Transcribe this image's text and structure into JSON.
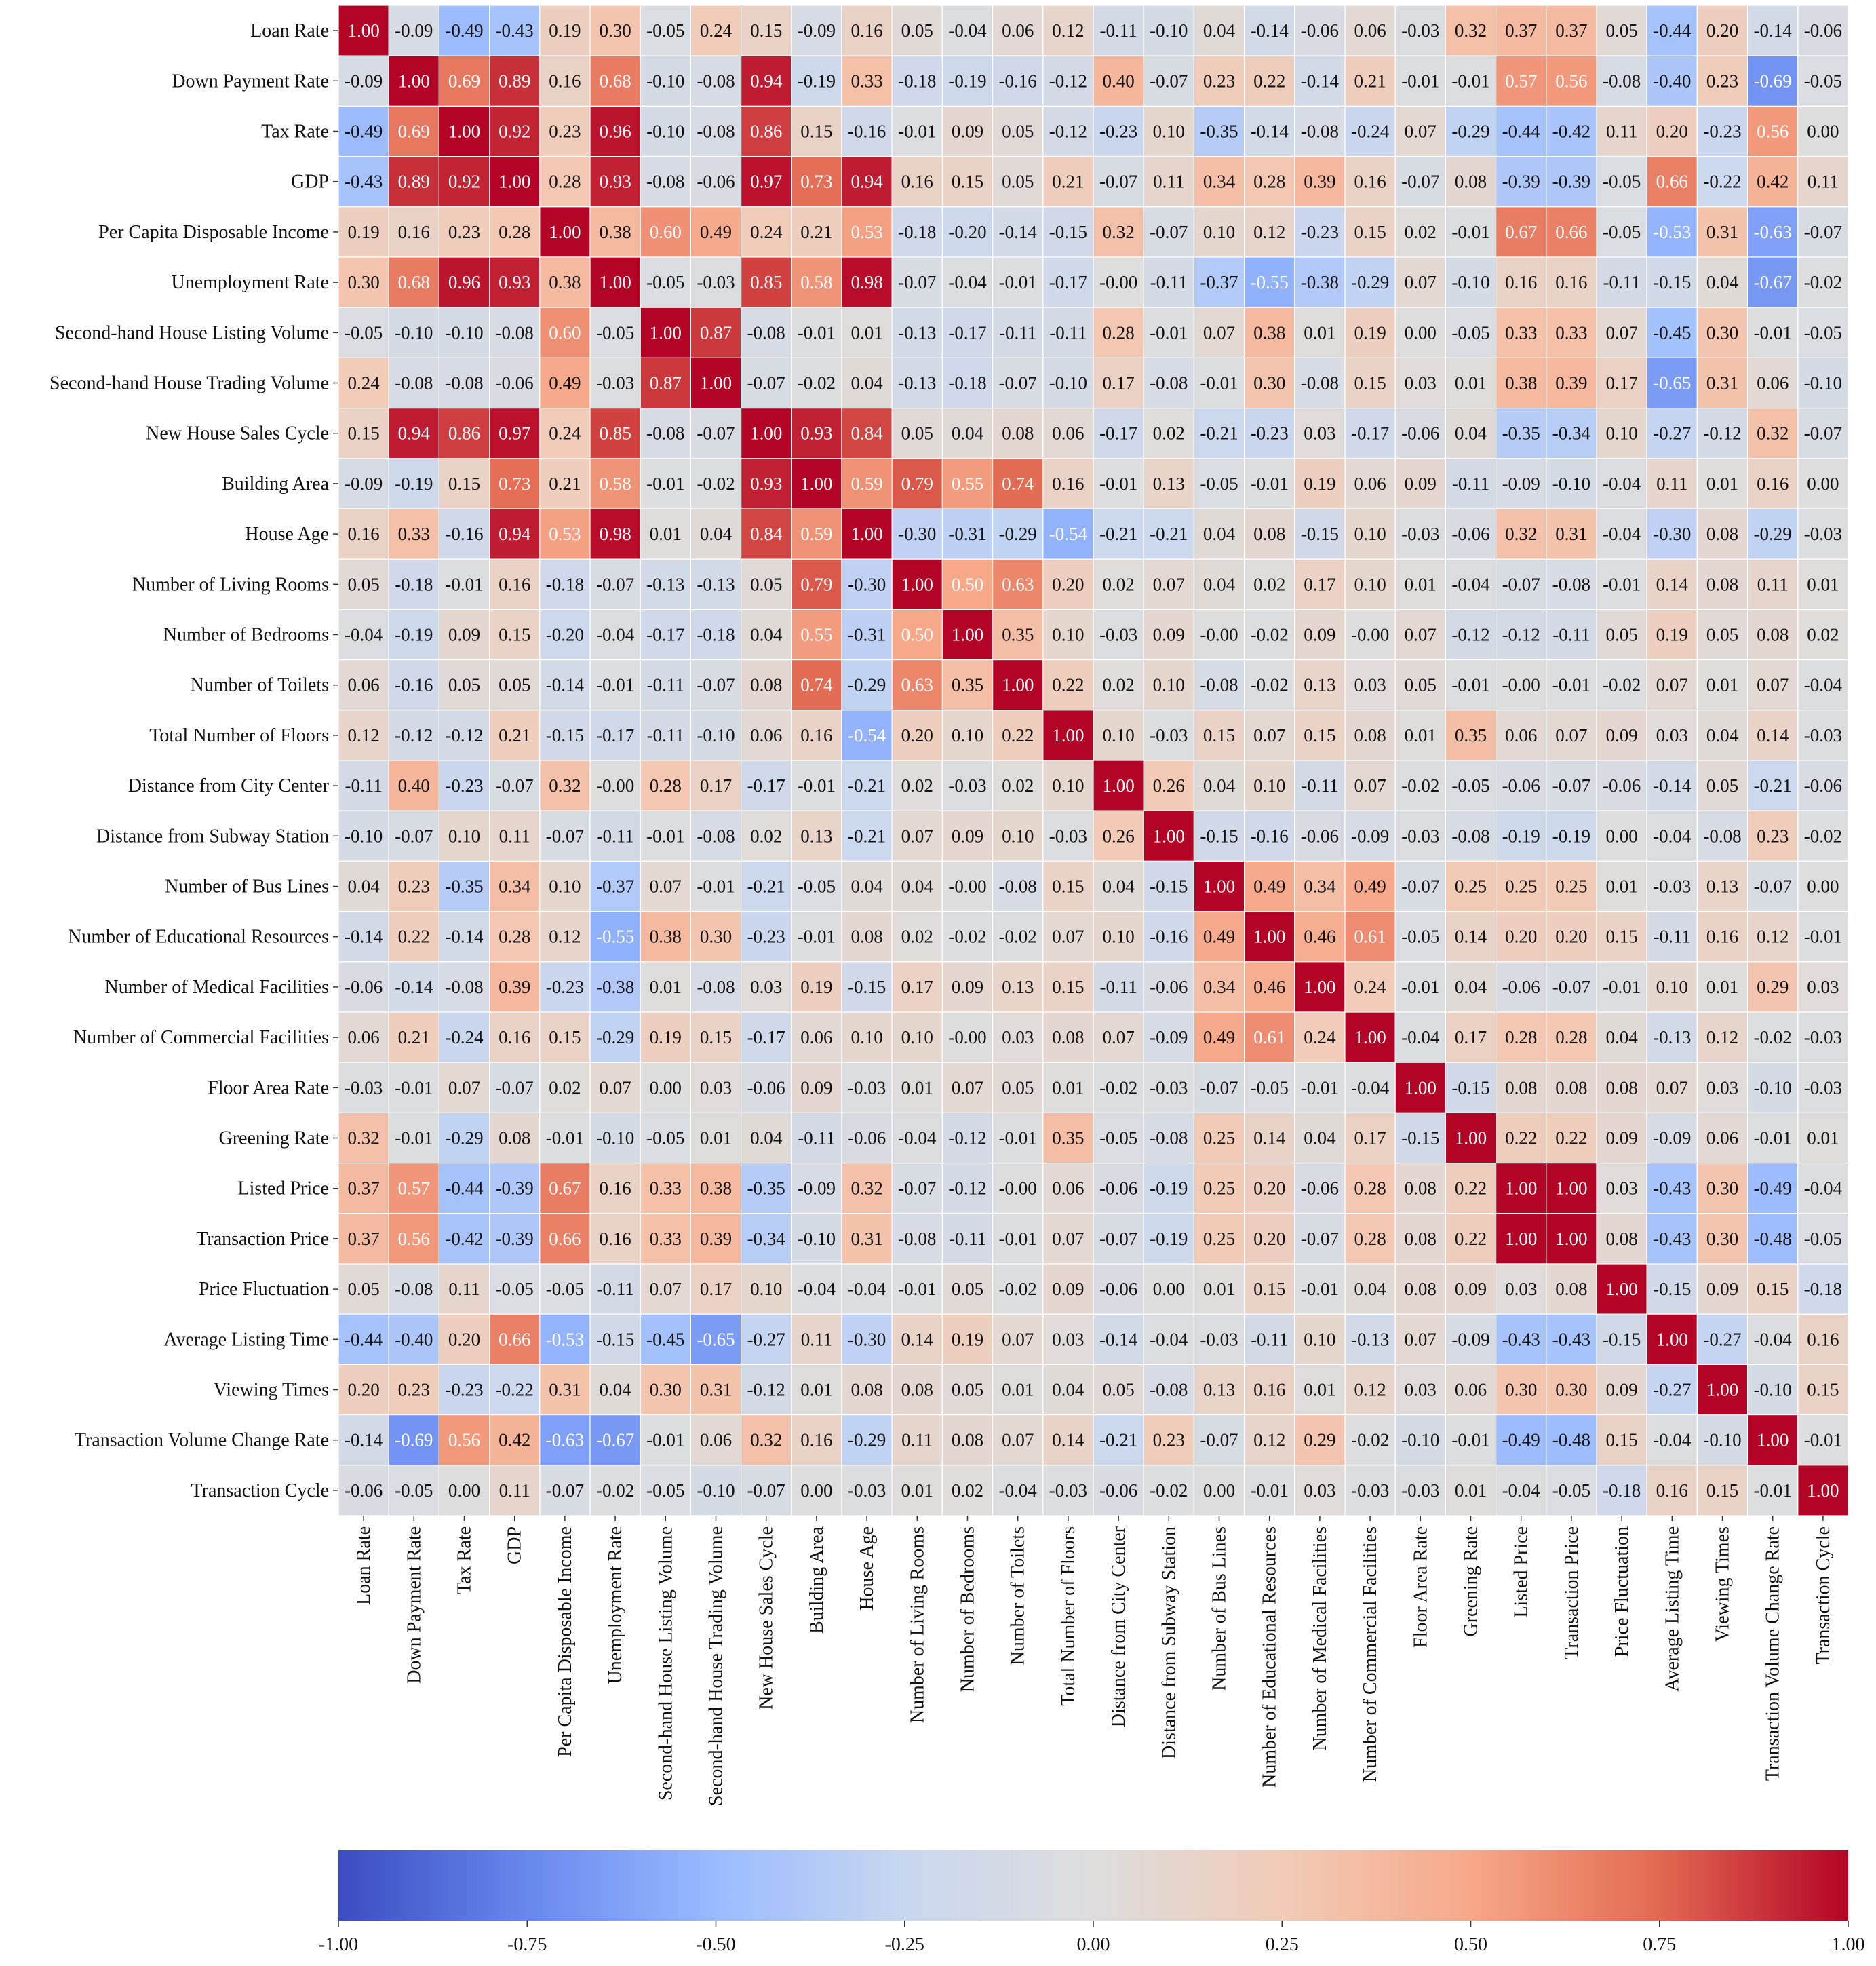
{
  "chart_data": {
    "type": "heatmap",
    "title": "",
    "labels": [
      "Loan Rate",
      "Down Payment Rate",
      "Tax Rate",
      "GDP",
      "Per Capita Disposable Income",
      "Unemployment Rate",
      "Second-hand House Listing Volume",
      "Second-hand House Trading Volume",
      "New House Sales Cycle",
      "Building Area",
      "House Age",
      "Number of Living Rooms",
      "Number of Bedrooms",
      "Number of Toilets",
      "Total Number of Floors",
      "Distance from City Center",
      "Distance from Subway Station",
      "Number of Bus Lines",
      "Number of Educational Resources",
      "Number of Medical Facilities",
      "Number of Commercial Facilities",
      "Floor Area Rate",
      "Greening Rate",
      "Listed Price",
      "Transaction Price",
      "Price Fluctuation",
      "Average Listing Time",
      "Viewing Times",
      "Transaction Volume Change Rate",
      "Transaction Cycle"
    ],
    "values": [
      [
        1.0,
        -0.09,
        -0.49,
        -0.43,
        0.19,
        0.3,
        -0.05,
        0.24,
        0.15,
        -0.09,
        0.16,
        0.05,
        -0.04,
        0.06,
        0.12,
        -0.11,
        -0.1,
        0.04,
        -0.14,
        -0.06,
        0.06,
        -0.03,
        0.32,
        0.37,
        0.37,
        0.05,
        -0.44,
        0.2,
        -0.14,
        -0.06
      ],
      [
        -0.09,
        1.0,
        0.69,
        0.89,
        0.16,
        0.68,
        -0.1,
        -0.08,
        0.94,
        -0.19,
        0.33,
        -0.18,
        -0.19,
        -0.16,
        -0.12,
        0.4,
        -0.07,
        0.23,
        0.22,
        -0.14,
        0.21,
        -0.01,
        -0.01,
        0.57,
        0.56,
        -0.08,
        -0.4,
        0.23,
        -0.69,
        -0.05
      ],
      [
        -0.49,
        0.69,
        1.0,
        0.92,
        0.23,
        0.96,
        -0.1,
        -0.08,
        0.86,
        0.15,
        -0.16,
        -0.01,
        0.09,
        0.05,
        -0.12,
        -0.23,
        0.1,
        -0.35,
        -0.14,
        -0.08,
        -0.24,
        0.07,
        -0.29,
        -0.44,
        -0.42,
        0.11,
        0.2,
        -0.23,
        0.56,
        0.0
      ],
      [
        -0.43,
        0.89,
        0.92,
        1.0,
        0.28,
        0.93,
        -0.08,
        -0.06,
        0.97,
        0.73,
        0.94,
        0.16,
        0.15,
        0.05,
        0.21,
        -0.07,
        0.11,
        0.34,
        0.28,
        0.39,
        0.16,
        -0.07,
        0.08,
        -0.39,
        -0.39,
        -0.05,
        0.66,
        -0.22,
        0.42,
        0.11
      ],
      [
        0.19,
        0.16,
        0.23,
        0.28,
        1.0,
        0.38,
        0.6,
        0.49,
        0.24,
        0.21,
        0.53,
        -0.18,
        -0.2,
        -0.14,
        -0.15,
        0.32,
        -0.07,
        0.1,
        0.12,
        -0.23,
        0.15,
        0.02,
        -0.01,
        0.67,
        0.66,
        -0.05,
        -0.53,
        0.31,
        -0.63,
        -0.07
      ],
      [
        0.3,
        0.68,
        0.96,
        0.93,
        0.38,
        1.0,
        -0.05,
        -0.03,
        0.85,
        0.58,
        0.98,
        -0.07,
        -0.04,
        -0.01,
        -0.17,
        -0.0,
        -0.11,
        -0.37,
        -0.55,
        -0.38,
        -0.29,
        0.07,
        -0.1,
        0.16,
        0.16,
        -0.11,
        -0.15,
        0.04,
        -0.67,
        -0.02
      ],
      [
        -0.05,
        -0.1,
        -0.1,
        -0.08,
        0.6,
        -0.05,
        1.0,
        0.87,
        -0.08,
        -0.01,
        0.01,
        -0.13,
        -0.17,
        -0.11,
        -0.11,
        0.28,
        -0.01,
        0.07,
        0.38,
        0.01,
        0.19,
        0.0,
        -0.05,
        0.33,
        0.33,
        0.07,
        -0.45,
        0.3,
        -0.01,
        -0.05
      ],
      [
        0.24,
        -0.08,
        -0.08,
        -0.06,
        0.49,
        -0.03,
        0.87,
        1.0,
        -0.07,
        -0.02,
        0.04,
        -0.13,
        -0.18,
        -0.07,
        -0.1,
        0.17,
        -0.08,
        -0.01,
        0.3,
        -0.08,
        0.15,
        0.03,
        0.01,
        0.38,
        0.39,
        0.17,
        -0.65,
        0.31,
        0.06,
        -0.1
      ],
      [
        0.15,
        0.94,
        0.86,
        0.97,
        0.24,
        0.85,
        -0.08,
        -0.07,
        1.0,
        0.93,
        0.84,
        0.05,
        0.04,
        0.08,
        0.06,
        -0.17,
        0.02,
        -0.21,
        -0.23,
        0.03,
        -0.17,
        -0.06,
        0.04,
        -0.35,
        -0.34,
        0.1,
        -0.27,
        -0.12,
        0.32,
        -0.07
      ],
      [
        -0.09,
        -0.19,
        0.15,
        0.73,
        0.21,
        0.58,
        -0.01,
        -0.02,
        0.93,
        1.0,
        0.59,
        0.79,
        0.55,
        0.74,
        0.16,
        -0.01,
        0.13,
        -0.05,
        -0.01,
        0.19,
        0.06,
        0.09,
        -0.11,
        -0.09,
        -0.1,
        -0.04,
        0.11,
        0.01,
        0.16,
        0.0
      ],
      [
        0.16,
        0.33,
        -0.16,
        0.94,
        0.53,
        0.98,
        0.01,
        0.04,
        0.84,
        0.59,
        1.0,
        -0.3,
        -0.31,
        -0.29,
        -0.54,
        -0.21,
        -0.21,
        0.04,
        0.08,
        -0.15,
        0.1,
        -0.03,
        -0.06,
        0.32,
        0.31,
        -0.04,
        -0.3,
        0.08,
        -0.29,
        -0.03
      ],
      [
        0.05,
        -0.18,
        -0.01,
        0.16,
        -0.18,
        -0.07,
        -0.13,
        -0.13,
        0.05,
        0.79,
        -0.3,
        1.0,
        0.5,
        0.63,
        0.2,
        0.02,
        0.07,
        0.04,
        0.02,
        0.17,
        0.1,
        0.01,
        -0.04,
        -0.07,
        -0.08,
        -0.01,
        0.14,
        0.08,
        0.11,
        0.01
      ],
      [
        -0.04,
        -0.19,
        0.09,
        0.15,
        -0.2,
        -0.04,
        -0.17,
        -0.18,
        0.04,
        0.55,
        -0.31,
        0.5,
        1.0,
        0.35,
        0.1,
        -0.03,
        0.09,
        -0.0,
        -0.02,
        0.09,
        -0.0,
        0.07,
        -0.12,
        -0.12,
        -0.11,
        0.05,
        0.19,
        0.05,
        0.08,
        0.02
      ],
      [
        0.06,
        -0.16,
        0.05,
        0.05,
        -0.14,
        -0.01,
        -0.11,
        -0.07,
        0.08,
        0.74,
        -0.29,
        0.63,
        0.35,
        1.0,
        0.22,
        0.02,
        0.1,
        -0.08,
        -0.02,
        0.13,
        0.03,
        0.05,
        -0.01,
        -0.0,
        -0.01,
        -0.02,
        0.07,
        0.01,
        0.07,
        -0.04
      ],
      [
        0.12,
        -0.12,
        -0.12,
        0.21,
        -0.15,
        -0.17,
        -0.11,
        -0.1,
        0.06,
        0.16,
        -0.54,
        0.2,
        0.1,
        0.22,
        1.0,
        0.1,
        -0.03,
        0.15,
        0.07,
        0.15,
        0.08,
        0.01,
        0.35,
        0.06,
        0.07,
        0.09,
        0.03,
        0.04,
        0.14,
        -0.03
      ],
      [
        -0.11,
        0.4,
        -0.23,
        -0.07,
        0.32,
        -0.0,
        0.28,
        0.17,
        -0.17,
        -0.01,
        -0.21,
        0.02,
        -0.03,
        0.02,
        0.1,
        1.0,
        0.26,
        0.04,
        0.1,
        -0.11,
        0.07,
        -0.02,
        -0.05,
        -0.06,
        -0.07,
        -0.06,
        -0.14,
        0.05,
        -0.21,
        -0.06
      ],
      [
        -0.1,
        -0.07,
        0.1,
        0.11,
        -0.07,
        -0.11,
        -0.01,
        -0.08,
        0.02,
        0.13,
        -0.21,
        0.07,
        0.09,
        0.1,
        -0.03,
        0.26,
        1.0,
        -0.15,
        -0.16,
        -0.06,
        -0.09,
        -0.03,
        -0.08,
        -0.19,
        -0.19,
        0.0,
        -0.04,
        -0.08,
        0.23,
        -0.02
      ],
      [
        0.04,
        0.23,
        -0.35,
        0.34,
        0.1,
        -0.37,
        0.07,
        -0.01,
        -0.21,
        -0.05,
        0.04,
        0.04,
        -0.0,
        -0.08,
        0.15,
        0.04,
        -0.15,
        1.0,
        0.49,
        0.34,
        0.49,
        -0.07,
        0.25,
        0.25,
        0.25,
        0.01,
        -0.03,
        0.13,
        -0.07,
        0.0
      ],
      [
        -0.14,
        0.22,
        -0.14,
        0.28,
        0.12,
        -0.55,
        0.38,
        0.3,
        -0.23,
        -0.01,
        0.08,
        0.02,
        -0.02,
        -0.02,
        0.07,
        0.1,
        -0.16,
        0.49,
        1.0,
        0.46,
        0.61,
        -0.05,
        0.14,
        0.2,
        0.2,
        0.15,
        -0.11,
        0.16,
        0.12,
        -0.01
      ],
      [
        -0.06,
        -0.14,
        -0.08,
        0.39,
        -0.23,
        -0.38,
        0.01,
        -0.08,
        0.03,
        0.19,
        -0.15,
        0.17,
        0.09,
        0.13,
        0.15,
        -0.11,
        -0.06,
        0.34,
        0.46,
        1.0,
        0.24,
        -0.01,
        0.04,
        -0.06,
        -0.07,
        -0.01,
        0.1,
        0.01,
        0.29,
        0.03
      ],
      [
        0.06,
        0.21,
        -0.24,
        0.16,
        0.15,
        -0.29,
        0.19,
        0.15,
        -0.17,
        0.06,
        0.1,
        0.1,
        -0.0,
        0.03,
        0.08,
        0.07,
        -0.09,
        0.49,
        0.61,
        0.24,
        1.0,
        -0.04,
        0.17,
        0.28,
        0.28,
        0.04,
        -0.13,
        0.12,
        -0.02,
        -0.03
      ],
      [
        -0.03,
        -0.01,
        0.07,
        -0.07,
        0.02,
        0.07,
        0.0,
        0.03,
        -0.06,
        0.09,
        -0.03,
        0.01,
        0.07,
        0.05,
        0.01,
        -0.02,
        -0.03,
        -0.07,
        -0.05,
        -0.01,
        -0.04,
        1.0,
        -0.15,
        0.08,
        0.08,
        0.08,
        0.07,
        0.03,
        -0.1,
        -0.03
      ],
      [
        0.32,
        -0.01,
        -0.29,
        0.08,
        -0.01,
        -0.1,
        -0.05,
        0.01,
        0.04,
        -0.11,
        -0.06,
        -0.04,
        -0.12,
        -0.01,
        0.35,
        -0.05,
        -0.08,
        0.25,
        0.14,
        0.04,
        0.17,
        -0.15,
        1.0,
        0.22,
        0.22,
        0.09,
        -0.09,
        0.06,
        -0.01,
        0.01
      ],
      [
        0.37,
        0.57,
        -0.44,
        -0.39,
        0.67,
        0.16,
        0.33,
        0.38,
        -0.35,
        -0.09,
        0.32,
        -0.07,
        -0.12,
        -0.0,
        0.06,
        -0.06,
        -0.19,
        0.25,
        0.2,
        -0.06,
        0.28,
        0.08,
        0.22,
        1.0,
        1.0,
        0.03,
        -0.43,
        0.3,
        -0.49,
        -0.04
      ],
      [
        0.37,
        0.56,
        -0.42,
        -0.39,
        0.66,
        0.16,
        0.33,
        0.39,
        -0.34,
        -0.1,
        0.31,
        -0.08,
        -0.11,
        -0.01,
        0.07,
        -0.07,
        -0.19,
        0.25,
        0.2,
        -0.07,
        0.28,
        0.08,
        0.22,
        1.0,
        1.0,
        0.08,
        -0.43,
        0.3,
        -0.48,
        -0.05
      ],
      [
        0.05,
        -0.08,
        0.11,
        -0.05,
        -0.05,
        -0.11,
        0.07,
        0.17,
        0.1,
        -0.04,
        -0.04,
        -0.01,
        0.05,
        -0.02,
        0.09,
        -0.06,
        0.0,
        0.01,
        0.15,
        -0.01,
        0.04,
        0.08,
        0.09,
        0.03,
        0.08,
        1.0,
        -0.15,
        0.09,
        0.15,
        -0.18
      ],
      [
        -0.44,
        -0.4,
        0.2,
        0.66,
        -0.53,
        -0.15,
        -0.45,
        -0.65,
        -0.27,
        0.11,
        -0.3,
        0.14,
        0.19,
        0.07,
        0.03,
        -0.14,
        -0.04,
        -0.03,
        -0.11,
        0.1,
        -0.13,
        0.07,
        -0.09,
        -0.43,
        -0.43,
        -0.15,
        1.0,
        -0.27,
        -0.04,
        0.16
      ],
      [
        0.2,
        0.23,
        -0.23,
        -0.22,
        0.31,
        0.04,
        0.3,
        0.31,
        -0.12,
        0.01,
        0.08,
        0.08,
        0.05,
        0.01,
        0.04,
        0.05,
        -0.08,
        0.13,
        0.16,
        0.01,
        0.12,
        0.03,
        0.06,
        0.3,
        0.3,
        0.09,
        -0.27,
        1.0,
        -0.1,
        0.15
      ],
      [
        -0.14,
        -0.69,
        0.56,
        0.42,
        -0.63,
        -0.67,
        -0.01,
        0.06,
        0.32,
        0.16,
        -0.29,
        0.11,
        0.08,
        0.07,
        0.14,
        -0.21,
        0.23,
        -0.07,
        0.12,
        0.29,
        -0.02,
        -0.1,
        -0.01,
        -0.49,
        -0.48,
        0.15,
        -0.04,
        -0.1,
        1.0,
        -0.01
      ],
      [
        -0.06,
        -0.05,
        0.0,
        0.11,
        -0.07,
        -0.02,
        -0.05,
        -0.1,
        -0.07,
        0.0,
        -0.03,
        0.01,
        0.02,
        -0.04,
        -0.03,
        -0.06,
        -0.02,
        0.0,
        -0.01,
        0.03,
        -0.03,
        -0.03,
        0.01,
        -0.04,
        -0.05,
        -0.18,
        0.16,
        0.15,
        -0.01,
        1.0
      ]
    ],
    "colormap": "coolwarm",
    "vmin": -1.0,
    "vmax": 1.0,
    "annotation_format": "0.00",
    "colorbar": {
      "orientation": "horizontal",
      "position": "bottom",
      "ticks": [
        -1.0,
        -0.75,
        -0.5,
        -0.25,
        0.0,
        0.25,
        0.5,
        0.75,
        1.0
      ],
      "tick_labels": [
        "-1.00",
        "-0.75",
        "-0.50",
        "-0.25",
        "0.00",
        "0.25",
        "0.50",
        "0.75",
        "1.00"
      ]
    },
    "colors": {
      "stops": [
        "#3b4cc0",
        "#6788ee",
        "#9abbff",
        "#c9d7f0",
        "#dddddd",
        "#f2cbb7",
        "#f7a889",
        "#e26952",
        "#b40426"
      ],
      "cell_border": "#ffffff"
    }
  }
}
